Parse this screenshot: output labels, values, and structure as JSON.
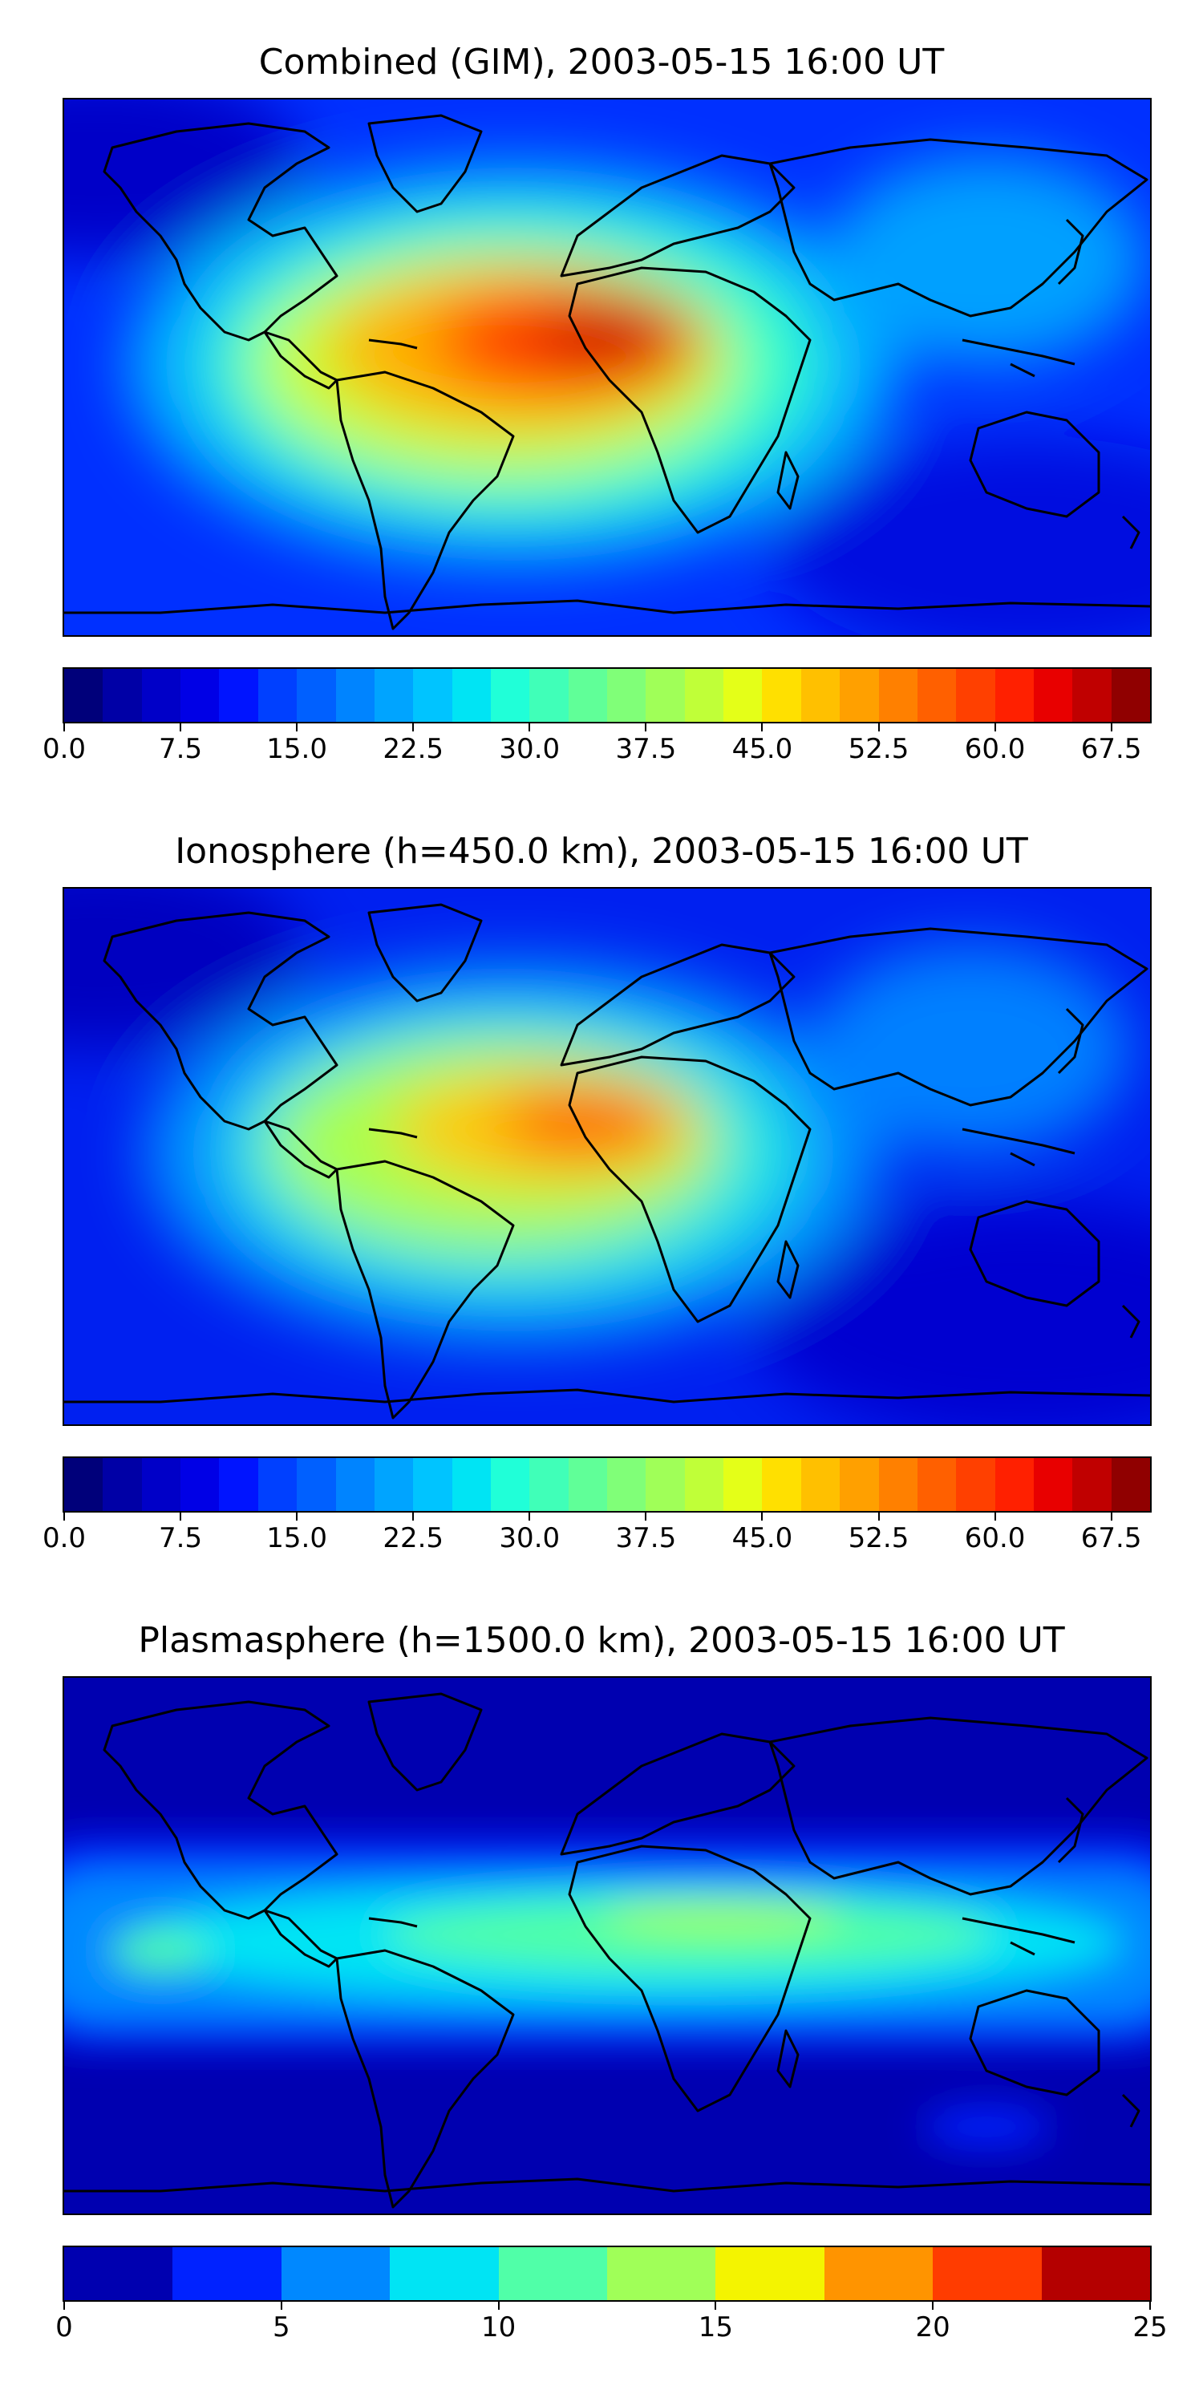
{
  "panels": [
    {
      "title": "Combined (GIM), 2003-05-15 16:00 UT",
      "colorbar": {
        "colors": [
          "#00007a",
          "#0000a6",
          "#0000c8",
          "#0000e6",
          "#0014ff",
          "#0040ff",
          "#0060ff",
          "#0084ff",
          "#00a4ff",
          "#00c4ff",
          "#00e4f4",
          "#20ffd8",
          "#40ffb8",
          "#60ff98",
          "#80ff78",
          "#a0ff58",
          "#c0ff38",
          "#e4ff18",
          "#ffe000",
          "#ffc000",
          "#ffa000",
          "#ff8000",
          "#ff6000",
          "#ff4000",
          "#ff2000",
          "#e80000",
          "#c00000",
          "#900000"
        ],
        "range": [
          0,
          70
        ],
        "ticks": [
          "0.0",
          "7.5",
          "15.0",
          "22.5",
          "30.0",
          "37.5",
          "45.0",
          "52.5",
          "60.0",
          "67.5"
        ],
        "tick_values": [
          0,
          7.5,
          15,
          22.5,
          30,
          37.5,
          45,
          52.5,
          60,
          67.5
        ]
      }
    },
    {
      "title": "Ionosphere  (h=450.0 km), 2003-05-15 16:00 UT",
      "colorbar": {
        "colors": [
          "#00007a",
          "#0000a6",
          "#0000c8",
          "#0000e6",
          "#0014ff",
          "#0040ff",
          "#0060ff",
          "#0084ff",
          "#00a4ff",
          "#00c4ff",
          "#00e4f4",
          "#20ffd8",
          "#40ffb8",
          "#60ff98",
          "#80ff78",
          "#a0ff58",
          "#c0ff38",
          "#e4ff18",
          "#ffe000",
          "#ffc000",
          "#ffa000",
          "#ff8000",
          "#ff6000",
          "#ff4000",
          "#ff2000",
          "#e80000",
          "#c00000",
          "#900000"
        ],
        "range": [
          0,
          70
        ],
        "ticks": [
          "0.0",
          "7.5",
          "15.0",
          "22.5",
          "30.0",
          "37.5",
          "45.0",
          "52.5",
          "60.0",
          "67.5"
        ],
        "tick_values": [
          0,
          7.5,
          15,
          22.5,
          30,
          37.5,
          45,
          52.5,
          60,
          67.5
        ]
      }
    },
    {
      "title": "Plasmasphere (h=1500.0 km), 2003-05-15 16:00 UT",
      "colorbar": {
        "colors": [
          "#0000b0",
          "#0022ff",
          "#0088ff",
          "#00e4f4",
          "#50ffa8",
          "#a0ff58",
          "#f4f400",
          "#ff9400",
          "#ff3c00",
          "#b40000"
        ],
        "range": [
          0,
          25
        ],
        "ticks": [
          "0",
          "5",
          "10",
          "15",
          "20",
          "25"
        ],
        "tick_values": [
          0,
          5,
          10,
          15,
          20,
          25
        ]
      }
    }
  ]
}
